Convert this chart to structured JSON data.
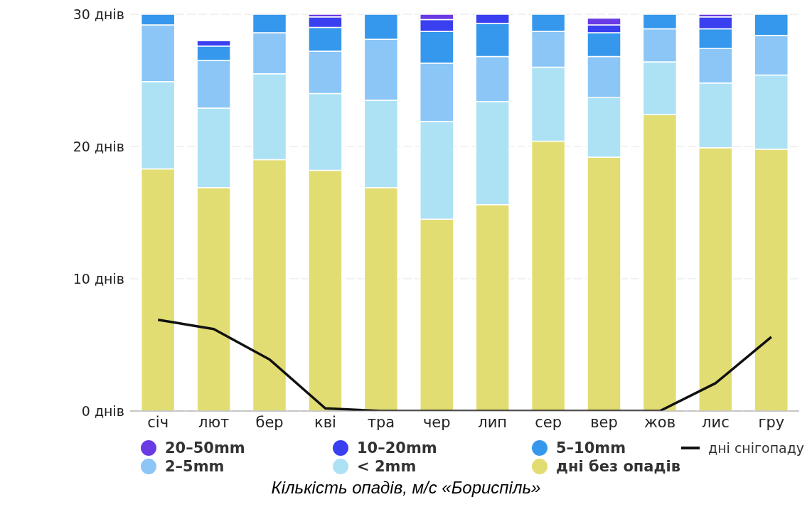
{
  "chart_data": {
    "type": "bar",
    "stacked": true,
    "title": "Кількість опадів, м/с «Бориспіль»",
    "categories": [
      "січ",
      "лют",
      "бер",
      "кві",
      "тра",
      "чер",
      "лип",
      "сер",
      "вер",
      "жов",
      "лис",
      "гру"
    ],
    "series": [
      {
        "name": "дні без опадів",
        "color": "#e2dd73",
        "values": [
          18.3,
          16.9,
          19.0,
          18.2,
          16.9,
          14.5,
          15.6,
          20.4,
          19.2,
          22.4,
          19.9,
          19.8
        ]
      },
      {
        "name": "< 2mm",
        "color": "#ade2f5",
        "values": [
          6.6,
          6.0,
          6.5,
          5.8,
          6.6,
          7.4,
          7.8,
          5.6,
          4.5,
          4.0,
          4.9,
          5.6
        ]
      },
      {
        "name": "2–5mm",
        "color": "#8bc6f7",
        "values": [
          4.3,
          3.6,
          3.1,
          3.2,
          4.6,
          4.4,
          3.4,
          2.7,
          3.1,
          2.5,
          2.6,
          3.0
        ]
      },
      {
        "name": "5–10mm",
        "color": "#3598ec",
        "values": [
          0.8,
          1.1,
          1.4,
          1.8,
          1.9,
          2.4,
          2.5,
          1.3,
          1.8,
          1.1,
          1.5,
          1.6
        ]
      },
      {
        "name": "10–20mm",
        "color": "#3a3ff0",
        "values": [
          0,
          0.4,
          0,
          0.8,
          0,
          0.9,
          0.7,
          0,
          0.6,
          0,
          0.9,
          0
        ]
      },
      {
        "name": "20–50mm",
        "color": "#6a3be4",
        "values": [
          0,
          0,
          0,
          0.2,
          0,
          0.4,
          0,
          0,
          0.5,
          0,
          0.2,
          0
        ]
      },
      {
        "name": "дні снігопаду",
        "type": "line",
        "color": "#111111",
        "values": [
          6.9,
          6.2,
          3.9,
          0.2,
          0,
          0,
          0,
          0,
          0,
          0,
          2.1,
          5.6
        ]
      }
    ],
    "ylim": [
      0,
      30
    ],
    "yticks": [
      {
        "value": 0,
        "label": "0 днів"
      },
      {
        "value": 10,
        "label": "10 днів"
      },
      {
        "value": 20,
        "label": "20 днів"
      },
      {
        "value": 30,
        "label": "30 днів"
      }
    ],
    "grid": "y",
    "legend": "bottom",
    "marker": "none"
  }
}
